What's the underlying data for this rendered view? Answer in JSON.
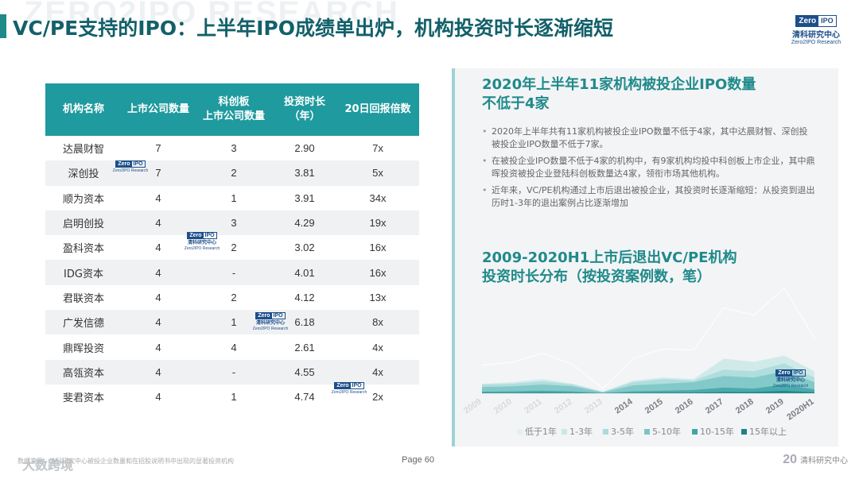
{
  "watermark": "ZERO2IPO RESEARCH",
  "title": "VC/PE支持的IPO：上半年IPO成绩单出炉，机构投资时长逐渐缩短",
  "logo": {
    "z1": "Zero",
    "z2": "IPO",
    "cn": "清科研究中心",
    "en": "Zero2IPO Research"
  },
  "table": {
    "headers": [
      "机构名称",
      "上市公司数量",
      "科创板\n上市公司数量",
      "投资时长\n（年）",
      "20日回报倍数"
    ],
    "rows": [
      [
        "达晨财智",
        "7",
        "3",
        "2.90",
        "7x"
      ],
      [
        "深创投",
        "7",
        "2",
        "3.81",
        "5x"
      ],
      [
        "顺为资本",
        "4",
        "1",
        "3.91",
        "34x"
      ],
      [
        "启明创投",
        "4",
        "3",
        "4.29",
        "19x"
      ],
      [
        "盈科资本",
        "4",
        "2",
        "3.02",
        "16x"
      ],
      [
        "IDG资本",
        "4",
        "-",
        "4.01",
        "16x"
      ],
      [
        "君联资本",
        "4",
        "2",
        "4.12",
        "13x"
      ],
      [
        "广发信德",
        "4",
        "1",
        "6.18",
        "8x"
      ],
      [
        "鼎晖投资",
        "4",
        "4",
        "2.61",
        "4x"
      ],
      [
        "高瓴资本",
        "4",
        "-",
        "4.55",
        "4x"
      ],
      [
        "斐君资本",
        "4",
        "1",
        "4.74",
        "2x"
      ]
    ]
  },
  "section1": {
    "title_line1": "2020年上半年11家机构被投企业IPO数量",
    "title_line2": "不低于4家",
    "bullets": [
      "2020年上半年共有11家机构被投企业IPO数量不低于4家，其中达晨财智、深创投被投企业IPO数量不低于7家。",
      "在被投企业IPO数量不低于4家的机构中，有9家机构均投中科创板上市企业，其中鼎晖投资被投企业登陆科创板数量达4家，领衔市场其他机构。",
      "近年来，VC/PE机构通过上市后退出被投企业，其投资时长逐渐缩短：从投资到退出历时1-3年的退出案例占比逐渐增加"
    ]
  },
  "section2": {
    "title_line1": "2009-2020H1上市后退出VC/PE机构",
    "title_line2": "投资时长分布（按投资案例数，笔）"
  },
  "chart_data": {
    "type": "area",
    "categories": [
      "2009",
      "2010",
      "2011",
      "2012",
      "2013",
      "2014",
      "2015",
      "2016",
      "2017",
      "2018",
      "2019",
      "2020H1"
    ],
    "series": [
      {
        "name": "低于1年",
        "color": "#e4f1f1",
        "values": [
          5,
          5,
          6,
          5,
          2,
          4,
          6,
          5,
          10,
          10,
          14,
          6
        ]
      },
      {
        "name": "1-3年",
        "color": "#c9e7e7",
        "values": [
          30,
          35,
          45,
          30,
          5,
          40,
          50,
          45,
          110,
          100,
          120,
          70
        ]
      },
      {
        "name": "3-5年",
        "color": "#aadada",
        "values": [
          28,
          30,
          38,
          28,
          4,
          35,
          45,
          40,
          75,
          70,
          95,
          50
        ]
      },
      {
        "name": "5-10年",
        "color": "#7cc5c5",
        "values": [
          20,
          22,
          28,
          22,
          3,
          25,
          30,
          35,
          55,
          50,
          70,
          35
        ]
      },
      {
        "name": "10-15年",
        "color": "#3fa6a8",
        "values": [
          5,
          6,
          8,
          6,
          1,
          6,
          8,
          10,
          18,
          15,
          28,
          12
        ]
      },
      {
        "name": "15年以上",
        "color": "#1b8386",
        "values": [
          1,
          1,
          2,
          1,
          0,
          1,
          2,
          2,
          4,
          4,
          8,
          3
        ]
      }
    ]
  },
  "footer": {
    "note": "数据来源：清科研究中心被投企业数量和在招股说明书中出现的显著投资机构",
    "brand": "大数跨境",
    "page": "Page  60",
    "corner_num": "20",
    "corner_text": "清科研究中心"
  }
}
